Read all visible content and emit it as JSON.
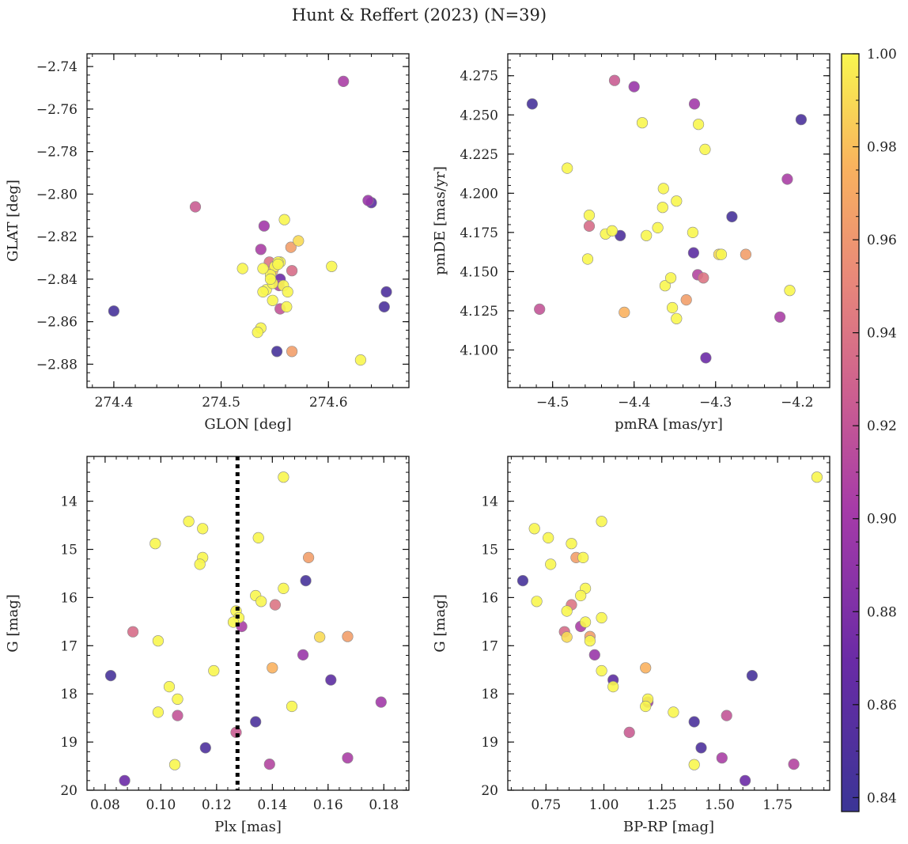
{
  "chart_data": {
    "title": "Hunt & Reffert (2023) (N=39)",
    "type": "scatter",
    "colormap": "plasma",
    "colorbar": {
      "label": "",
      "range": [
        0.837,
        1.0
      ],
      "ticks": [
        0.84,
        0.86,
        0.88,
        0.9,
        0.92,
        0.94,
        0.96,
        0.98,
        1.0
      ],
      "tick_labels": [
        "0.84",
        "0.86",
        "0.88",
        "0.90",
        "0.92",
        "0.94",
        "0.96",
        "0.98",
        "1.00"
      ]
    },
    "panels": [
      {
        "id": "glon-glat",
        "xlabel": "GLON [deg]",
        "ylabel": "GLAT [deg]",
        "xlim": [
          274.375,
          274.675
        ],
        "ylim": [
          -2.891,
          -2.734
        ],
        "y_inverted": false,
        "xticks": [
          274.4,
          274.5,
          274.6
        ],
        "xtick_labels": [
          "274.4",
          "274.5",
          "274.6"
        ],
        "yticks": [
          -2.74,
          -2.76,
          -2.78,
          -2.8,
          -2.82,
          -2.84,
          -2.86,
          -2.88
        ],
        "ytick_labels": [
          "−2.74",
          "−2.76",
          "−2.78",
          "−2.80",
          "−2.82",
          "−2.84",
          "−2.86",
          "−2.88"
        ]
      },
      {
        "id": "pm",
        "xlabel": "pmRA [mas/yr]",
        "ylabel": "pmDE [mas/yr]",
        "xlim": [
          -4.555,
          -4.16
        ],
        "ylim": [
          4.076,
          4.289
        ],
        "y_inverted": false,
        "xticks": [
          -4.5,
          -4.4,
          -4.3,
          -4.2
        ],
        "xtick_labels": [
          "−4.5",
          "−4.4",
          "−4.3",
          "−4.2"
        ],
        "yticks": [
          4.1,
          4.125,
          4.15,
          4.175,
          4.2,
          4.225,
          4.25,
          4.275
        ],
        "ytick_labels": [
          "4.100",
          "4.125",
          "4.150",
          "4.175",
          "4.200",
          "4.225",
          "4.250",
          "4.275"
        ]
      },
      {
        "id": "plx-g",
        "xlabel": "Plx [mas]",
        "ylabel": "G [mag]",
        "xlim": [
          0.0735,
          0.189
        ],
        "ylim": [
          13.07,
          20.0
        ],
        "y_inverted": true,
        "xticks": [
          0.08,
          0.1,
          0.12,
          0.14,
          0.16,
          0.18
        ],
        "xtick_labels": [
          "0.08",
          "0.10",
          "0.12",
          "0.14",
          "0.16",
          "0.18"
        ],
        "yticks": [
          14,
          15,
          16,
          17,
          18,
          19,
          20
        ],
        "ytick_labels": [
          "14",
          "15",
          "16",
          "17",
          "18",
          "19",
          "20"
        ],
        "vline": {
          "x": 0.1275,
          "style": "dotted"
        }
      },
      {
        "id": "cmd",
        "xlabel": "BP-RP [mag]",
        "ylabel": "G [mag]",
        "xlim": [
          0.585,
          1.975
        ],
        "ylim": [
          13.07,
          20.0
        ],
        "y_inverted": true,
        "xticks": [
          0.75,
          1.0,
          1.25,
          1.5,
          1.75
        ],
        "xtick_labels": [
          "0.75",
          "1.00",
          "1.25",
          "1.50",
          "1.75"
        ],
        "yticks": [
          14,
          15,
          16,
          17,
          18,
          19,
          20
        ],
        "ytick_labels": [
          "14",
          "15",
          "16",
          "17",
          "18",
          "19",
          "20"
        ]
      }
    ],
    "series": [
      {
        "name": "stars",
        "points": [
          {
            "glon": 274.4,
            "glat": -2.855,
            "pmra": -4.525,
            "pmde": 4.257,
            "plx": 0.082,
            "g": 17.62,
            "bprp": 1.64,
            "prob": 0.845
          },
          {
            "glon": 274.552,
            "glat": -2.874,
            "pmra": -4.28,
            "pmde": 4.185,
            "plx": 0.152,
            "g": 15.65,
            "bprp": 0.65,
            "prob": 0.845
          },
          {
            "glon": 274.652,
            "glat": -2.853,
            "pmra": -4.195,
            "pmde": 4.247,
            "plx": 0.134,
            "g": 18.58,
            "bprp": 1.39,
            "prob": 0.848
          },
          {
            "glon": 274.654,
            "glat": -2.846,
            "pmra": -4.417,
            "pmde": 4.173,
            "plx": 0.116,
            "g": 19.12,
            "bprp": 1.42,
            "prob": 0.85
          },
          {
            "glon": 274.64,
            "glat": -2.804,
            "pmra": -4.327,
            "pmde": 4.162,
            "plx": 0.161,
            "g": 17.71,
            "bprp": 1.04,
            "prob": 0.86
          },
          {
            "glon": 274.555,
            "glat": -2.84,
            "pmra": -4.312,
            "pmde": 4.095,
            "plx": 0.087,
            "g": 19.8,
            "bprp": 1.61,
            "prob": 0.87
          },
          {
            "glon": 274.637,
            "glat": -2.803,
            "pmra": -4.4,
            "pmde": 4.268,
            "plx": 0.151,
            "g": 17.19,
            "bprp": 0.96,
            "prob": 0.895
          },
          {
            "glon": 274.54,
            "glat": -2.815,
            "pmra": -4.326,
            "pmde": 4.257,
            "plx": 0.179,
            "g": 18.17,
            "bprp": 1.19,
            "prob": 0.9
          },
          {
            "glon": 274.537,
            "glat": -2.826,
            "pmra": -4.221,
            "pmde": 4.121,
            "plx": 0.129,
            "g": 16.6,
            "bprp": 0.9,
            "prob": 0.905
          },
          {
            "glon": 274.614,
            "glat": -2.747,
            "pmra": -4.212,
            "pmde": 4.209,
            "plx": 0.167,
            "g": 19.33,
            "bprp": 1.51,
            "prob": 0.905
          },
          {
            "glon": 274.554,
            "glat": -2.843,
            "pmra": -4.322,
            "pmde": 4.148,
            "plx": 0.139,
            "g": 19.46,
            "bprp": 1.82,
            "prob": 0.91
          },
          {
            "glon": 274.555,
            "glat": -2.854,
            "pmra": -4.516,
            "pmde": 4.126,
            "plx": 0.106,
            "g": 18.45,
            "bprp": 1.53,
            "prob": 0.92
          },
          {
            "glon": 274.476,
            "glat": -2.806,
            "pmra": -4.424,
            "pmde": 4.272,
            "plx": 0.127,
            "g": 18.8,
            "bprp": 1.11,
            "prob": 0.925
          },
          {
            "glon": 274.566,
            "glat": -2.836,
            "pmra": -4.455,
            "pmde": 4.179,
            "plx": 0.09,
            "g": 16.71,
            "bprp": 0.83,
            "prob": 0.935
          },
          {
            "glon": 274.545,
            "glat": -2.832,
            "pmra": -4.315,
            "pmde": 4.146,
            "plx": 0.141,
            "g": 16.15,
            "bprp": 0.86,
            "prob": 0.94
          },
          {
            "glon": 274.565,
            "glat": -2.825,
            "pmra": -4.263,
            "pmde": 4.161,
            "plx": 0.153,
            "g": 15.17,
            "bprp": 0.88,
            "prob": 0.965
          },
          {
            "glon": 274.566,
            "glat": -2.874,
            "pmra": -4.336,
            "pmde": 4.132,
            "plx": 0.167,
            "g": 16.81,
            "bprp": 0.94,
            "prob": 0.965
          },
          {
            "glon": 274.548,
            "glat": -2.836,
            "pmra": -4.412,
            "pmde": 4.124,
            "plx": 0.14,
            "g": 17.46,
            "bprp": 1.18,
            "prob": 0.975
          },
          {
            "glon": 274.572,
            "glat": -2.822,
            "pmra": -4.296,
            "pmde": 4.161,
            "plx": 0.157,
            "g": 16.82,
            "bprp": 0.84,
            "prob": 0.99
          },
          {
            "glon": 274.559,
            "glat": -2.812,
            "pmra": -4.455,
            "pmde": 4.186,
            "plx": 0.144,
            "g": 13.5,
            "bprp": 1.92,
            "prob": 1.0
          },
          {
            "glon": 274.52,
            "glat": -2.835,
            "pmra": -4.482,
            "pmde": 4.216,
            "plx": 0.11,
            "g": 14.42,
            "bprp": 0.99,
            "prob": 1.0
          },
          {
            "glon": 274.603,
            "glat": -2.834,
            "pmra": -4.39,
            "pmde": 4.245,
            "plx": 0.115,
            "g": 14.57,
            "bprp": 0.7,
            "prob": 1.0
          },
          {
            "glon": 274.555,
            "glat": -2.832,
            "pmra": -4.321,
            "pmde": 4.244,
            "plx": 0.135,
            "g": 14.76,
            "bprp": 0.76,
            "prob": 1.0
          },
          {
            "glon": 274.55,
            "glat": -2.834,
            "pmra": -4.313,
            "pmde": 4.228,
            "plx": 0.098,
            "g": 14.88,
            "bprp": 0.86,
            "prob": 1.0
          },
          {
            "glon": 274.546,
            "glat": -2.838,
            "pmra": -4.364,
            "pmde": 4.203,
            "plx": 0.115,
            "g": 15.17,
            "bprp": 0.91,
            "prob": 1.0
          },
          {
            "glon": 274.542,
            "glat": -2.845,
            "pmra": -4.348,
            "pmde": 4.195,
            "plx": 0.114,
            "g": 15.31,
            "bprp": 0.77,
            "prob": 1.0
          },
          {
            "glon": 274.548,
            "glat": -2.85,
            "pmra": -4.365,
            "pmde": 4.191,
            "plx": 0.144,
            "g": 15.81,
            "bprp": 0.92,
            "prob": 1.0
          },
          {
            "glon": 274.553,
            "glat": -2.832,
            "pmra": -4.371,
            "pmde": 4.178,
            "plx": 0.134,
            "g": 15.96,
            "bprp": 0.9,
            "prob": 1.0
          },
          {
            "glon": 274.558,
            "glat": -2.843,
            "pmra": -4.385,
            "pmde": 4.173,
            "plx": 0.136,
            "g": 16.08,
            "bprp": 0.71,
            "prob": 1.0
          },
          {
            "glon": 274.562,
            "glat": -2.846,
            "pmra": -4.435,
            "pmde": 4.174,
            "plx": 0.127,
            "g": 16.28,
            "bprp": 0.84,
            "prob": 1.0
          },
          {
            "glon": 274.539,
            "glat": -2.846,
            "pmra": -4.427,
            "pmde": 4.176,
            "plx": 0.128,
            "g": 16.42,
            "bprp": 0.99,
            "prob": 1.0
          },
          {
            "glon": 274.548,
            "glat": -2.842,
            "pmra": -4.328,
            "pmde": 4.175,
            "plx": 0.126,
            "g": 16.51,
            "bprp": 0.92,
            "prob": 1.0
          },
          {
            "glon": 274.561,
            "glat": -2.853,
            "pmra": -4.457,
            "pmde": 4.158,
            "plx": 0.099,
            "g": 16.9,
            "bprp": 0.94,
            "prob": 1.0
          },
          {
            "glon": 274.537,
            "glat": -2.863,
            "pmra": -4.293,
            "pmde": 4.161,
            "plx": 0.119,
            "g": 17.52,
            "bprp": 0.99,
            "prob": 1.0
          },
          {
            "glon": 274.534,
            "glat": -2.865,
            "pmra": -4.362,
            "pmde": 4.141,
            "plx": 0.103,
            "g": 17.85,
            "bprp": 1.04,
            "prob": 1.0
          },
          {
            "glon": 274.63,
            "glat": -2.878,
            "pmra": -4.355,
            "pmde": 4.146,
            "plx": 0.106,
            "g": 18.11,
            "bprp": 1.19,
            "prob": 1.0
          },
          {
            "glon": 274.539,
            "glat": -2.835,
            "pmra": -4.209,
            "pmde": 4.138,
            "plx": 0.147,
            "g": 18.26,
            "bprp": 1.18,
            "prob": 1.0
          },
          {
            "glon": 274.546,
            "glat": -2.84,
            "pmra": -4.353,
            "pmde": 4.127,
            "plx": 0.099,
            "g": 18.38,
            "bprp": 1.3,
            "prob": 1.0
          },
          {
            "glon": 274.553,
            "glat": -2.833,
            "pmra": -4.348,
            "pmde": 4.12,
            "plx": 0.105,
            "g": 19.47,
            "bprp": 1.39,
            "prob": 1.0
          }
        ]
      }
    ]
  }
}
